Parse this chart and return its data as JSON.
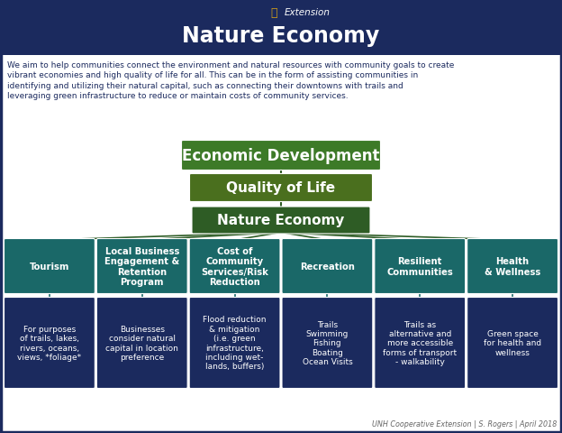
{
  "title": "Nature Economy",
  "subtitle": "Extension",
  "header_bg": "#1b2a5e",
  "header_text_color": "#ffffff",
  "body_bg": "#ffffff",
  "border_color": "#1b2a5e",
  "description": "We aim to help communities connect the environment and natural resources with community goals to create vibrant economies and high quality of life for all. This can be in the form of assisting communities in identifying and utilizing their natural capital, such as connecting their downtowns with trails and leveraging green infrastructure to reduce or maintain costs of community services.",
  "desc_fontsize": 6.5,
  "level1": {
    "text": "Economic Development",
    "color": "#3d7a28",
    "text_color": "#ffffff",
    "fontsize": 12
  },
  "level2": {
    "text": "Quality of Life",
    "color": "#4a6f1e",
    "text_color": "#ffffff",
    "fontsize": 11
  },
  "level3": {
    "text": "Nature Economy",
    "color": "#2e5c25",
    "text_color": "#ffffff",
    "fontsize": 11
  },
  "level4": [
    {
      "text": "Tourism"
    },
    {
      "text": "Local Business\nEngagement &\nRetention\nProgram"
    },
    {
      "text": "Cost of\nCommunity\nServices/Risk\nReduction"
    },
    {
      "text": "Recreation"
    },
    {
      "text": "Resilient\nCommunities"
    },
    {
      "text": "Health\n& Wellness"
    }
  ],
  "level4_color": "#1a6868",
  "level5": [
    {
      "text": "For purposes\nof trails, lakes,\nrivers, oceans,\nviews, *foliage*"
    },
    {
      "text": "Businesses\nconsider natural\ncapital in location\npreference"
    },
    {
      "text": "Flood reduction\n& mitigation\n(i.e. green\ninfrastructure,\nincluding wet-\nlands, buffers)"
    },
    {
      "text": "Trails\nSwimming\nFishing\nBoating\nOcean Visits"
    },
    {
      "text": "Trails as\nalternative and\nmore accessible\nforms of transport\n- walkability"
    },
    {
      "text": "Green space\nfor health and\nwellness"
    }
  ],
  "level5_color": "#1b2a5e",
  "footer": "UNH Cooperative Extension | S. Rogers | April 2018",
  "line_color": "#2e5c25",
  "white": "#ffffff"
}
